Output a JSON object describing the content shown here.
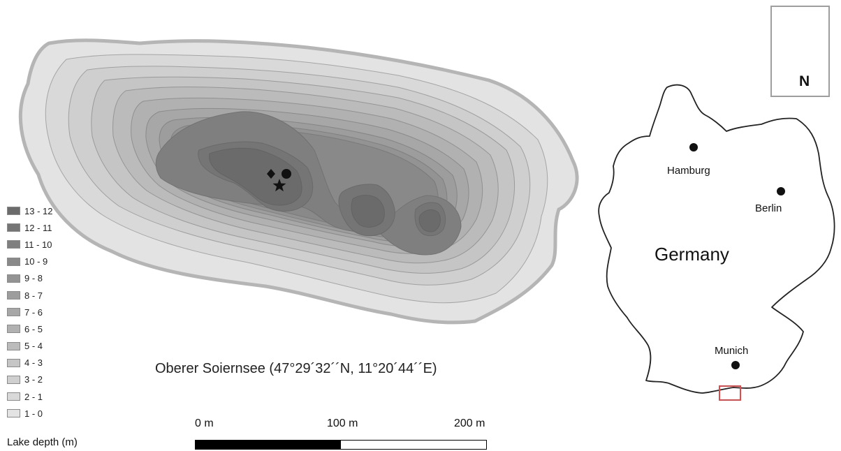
{
  "lake": {
    "caption": "Oberer Soiernsee (47°29´32´´N, 11°20´44´´E)"
  },
  "legend": {
    "title": "Lake depth (m)",
    "items": [
      {
        "label": "13 - 12",
        "color": "#6b6b6b"
      },
      {
        "label": "12 - 11",
        "color": "#757575"
      },
      {
        "label": "11 - 10",
        "color": "#7f7f7f"
      },
      {
        "label": "10 - 9",
        "color": "#898989"
      },
      {
        "label": "9 - 8",
        "color": "#939393"
      },
      {
        "label": "8 - 7",
        "color": "#9d9d9d"
      },
      {
        "label": "7 - 6",
        "color": "#a7a7a7"
      },
      {
        "label": "6 - 5",
        "color": "#b1b1b1"
      },
      {
        "label": "5 - 4",
        "color": "#bbbbbb"
      },
      {
        "label": "4 - 3",
        "color": "#c5c5c5"
      },
      {
        "label": "3 - 2",
        "color": "#cfcfcf"
      },
      {
        "label": "2 - 1",
        "color": "#d9d9d9"
      },
      {
        "label": "1 - 0",
        "color": "#e3e3e3"
      }
    ]
  },
  "scale_bar": {
    "labels": [
      "0 m",
      "100 m",
      "200 m"
    ]
  },
  "inset": {
    "country": "Germany",
    "cities": [
      {
        "name": "Hamburg"
      },
      {
        "name": "Berlin"
      },
      {
        "name": "Munich"
      }
    ],
    "locator_color": "#e04a4a"
  },
  "north_arrow": {
    "label": "N"
  }
}
